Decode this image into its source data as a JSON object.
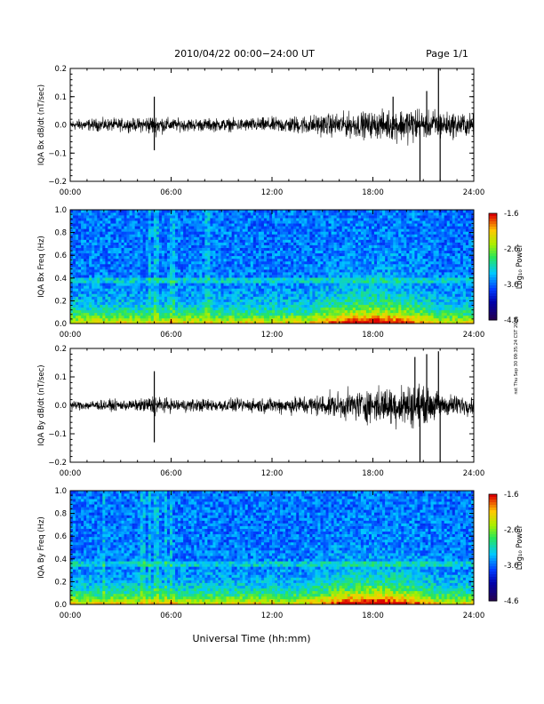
{
  "header": {
    "title": "2010/04/22  00:00−24:00 UT",
    "page": "Page 1/1"
  },
  "footer": {
    "xlabel": "Universal Time (hh:mm)",
    "side_note": "nst Thu Sep 30 09:35:24 CST 2019"
  },
  "chart_data": [
    {
      "type": "line",
      "ylabel": "IQA Bx dB/dt (nT/sec)",
      "xlim": [
        0,
        24
      ],
      "ylim": [
        -0.2,
        0.2
      ],
      "x_ticks": [
        "00:00",
        "06:00",
        "12:00",
        "18:00",
        "24:00"
      ],
      "y_ticks": [
        "0.2",
        "0.1",
        "0.0",
        "−0.1",
        "−0.2"
      ],
      "envelope_hours": [
        0,
        2,
        4,
        5,
        5.5,
        6,
        8,
        10,
        12,
        13,
        14,
        15,
        16,
        17,
        18,
        19,
        20,
        20.8,
        21,
        21.5,
        22,
        22.1,
        23,
        24
      ],
      "envelope_amp": [
        0.025,
        0.03,
        0.03,
        0.05,
        0.04,
        0.03,
        0.03,
        0.03,
        0.035,
        0.04,
        0.045,
        0.05,
        0.055,
        0.06,
        0.06,
        0.07,
        0.08,
        0.09,
        0.06,
        0.07,
        0.08,
        0.06,
        0.06,
        0.05
      ],
      "spikes": [
        {
          "x": 5.0,
          "y": 0.1
        },
        {
          "x": 5.0,
          "y": -0.09
        },
        {
          "x": 20.8,
          "y": -0.21
        },
        {
          "x": 21.9,
          "y": 0.21
        },
        {
          "x": 22.0,
          "y": -0.21
        },
        {
          "x": 21.2,
          "y": 0.12
        },
        {
          "x": 19.2,
          "y": 0.1
        }
      ]
    },
    {
      "type": "heatmap",
      "ylabel": "IQA Bx Freq (Hz)",
      "xlim": [
        0,
        24
      ],
      "ylim": [
        0,
        1.0
      ],
      "x_ticks": [
        "00:00",
        "06:00",
        "12:00",
        "18:00",
        "24:00"
      ],
      "y_ticks": [
        "1.0",
        "0.8",
        "0.6",
        "0.4",
        "0.2",
        "0.0"
      ],
      "colorbar": {
        "label": "Log₁₀ Power",
        "min": -4.6,
        "max": -1.6,
        "ticks": [
          "-1.6",
          "-2.6",
          "-3.6",
          "-4.6"
        ]
      },
      "line_freq": 0.38,
      "enhanced_hours": [
        14,
        22
      ],
      "vertical_lines": [
        4.7,
        5.1,
        6.1,
        8.2
      ]
    },
    {
      "type": "line",
      "ylabel": "IQA By dB/dt (nT/sec)",
      "xlim": [
        0,
        24
      ],
      "ylim": [
        -0.2,
        0.2
      ],
      "x_ticks": [
        "00:00",
        "06:00",
        "12:00",
        "18:00",
        "24:00"
      ],
      "y_ticks": [
        "0.2",
        "0.1",
        "0.0",
        "−0.1",
        "−0.2"
      ],
      "envelope_hours": [
        0,
        2,
        4,
        5,
        5.5,
        6,
        8,
        10,
        12,
        13,
        14,
        15,
        16,
        17,
        18,
        19,
        20,
        20.8,
        21,
        21.5,
        22,
        22.1,
        23,
        24
      ],
      "envelope_amp": [
        0.02,
        0.025,
        0.025,
        0.05,
        0.035,
        0.03,
        0.03,
        0.03,
        0.035,
        0.04,
        0.045,
        0.05,
        0.06,
        0.07,
        0.08,
        0.09,
        0.1,
        0.1,
        0.08,
        0.07,
        0.07,
        0.05,
        0.05,
        0.04
      ],
      "spikes": [
        {
          "x": 5.0,
          "y": 0.12
        },
        {
          "x": 5.0,
          "y": -0.13
        },
        {
          "x": 20.8,
          "y": -0.21
        },
        {
          "x": 21.2,
          "y": 0.18
        },
        {
          "x": 21.9,
          "y": 0.19
        },
        {
          "x": 22.0,
          "y": -0.21
        },
        {
          "x": 20.5,
          "y": 0.17
        }
      ]
    },
    {
      "type": "heatmap",
      "ylabel": "IQA By Freq (Hz)",
      "xlim": [
        0,
        24
      ],
      "ylim": [
        0,
        1.0
      ],
      "x_ticks": [
        "00:00",
        "06:00",
        "12:00",
        "18:00",
        "24:00"
      ],
      "y_ticks": [
        "1.0",
        "0.8",
        "0.6",
        "0.4",
        "0.2",
        "0.0"
      ],
      "colorbar": {
        "label": "Log₁₀ Power",
        "min": -4.6,
        "max": -1.6,
        "ticks": [
          "-1.6",
          "-2.6",
          "-3.6",
          "-4.6"
        ]
      },
      "line_freq": 0.36,
      "enhanced_hours": [
        14,
        22
      ],
      "vertical_lines": [
        2.0,
        4.3,
        4.7,
        5.1,
        5.7,
        6.0
      ]
    }
  ]
}
